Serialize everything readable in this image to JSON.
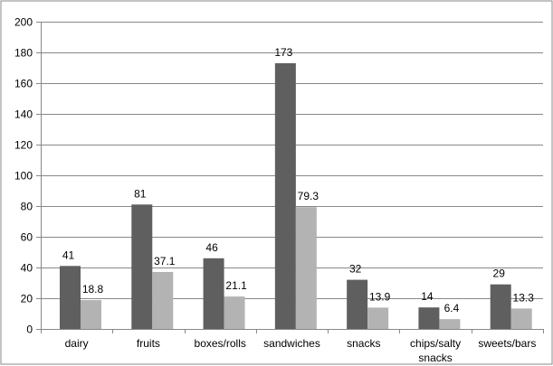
{
  "chart_data": {
    "type": "bar",
    "categories": [
      "dairy",
      "fruits",
      "boxes/rolls",
      "sandwiches",
      "snacks",
      "chips/salty snacks",
      "sweets/bars"
    ],
    "category_label_lines": [
      [
        "dairy"
      ],
      [
        "fruits"
      ],
      [
        "boxes/rolls"
      ],
      [
        "sandwiches"
      ],
      [
        "snacks"
      ],
      [
        "chips/salty",
        "snacks"
      ],
      [
        "sweets/bars"
      ]
    ],
    "series": [
      {
        "values": [
          41,
          81,
          46,
          173,
          32,
          14,
          29
        ],
        "labels": [
          "41",
          "81",
          "46",
          "173",
          "32",
          "14",
          "29"
        ],
        "color": "#5f5f5f"
      },
      {
        "values": [
          18.8,
          37.1,
          21.1,
          79.3,
          13.9,
          6.4,
          13.3
        ],
        "labels": [
          "18.8",
          "37.1",
          "21.1",
          "79.3",
          "13.9",
          "6.4",
          "13.3"
        ],
        "color": "#b3b3b3"
      }
    ],
    "ylim": [
      0,
      200
    ],
    "yticks": [
      0,
      20,
      40,
      60,
      80,
      100,
      120,
      140,
      160,
      180,
      200
    ],
    "ytick_labels": [
      "0",
      "20",
      "40",
      "60",
      "80",
      "100",
      "120",
      "140",
      "160",
      "180",
      "200"
    ],
    "grid": true,
    "legend": "none",
    "gridline_color": "#888888",
    "border_color": "#888888"
  }
}
